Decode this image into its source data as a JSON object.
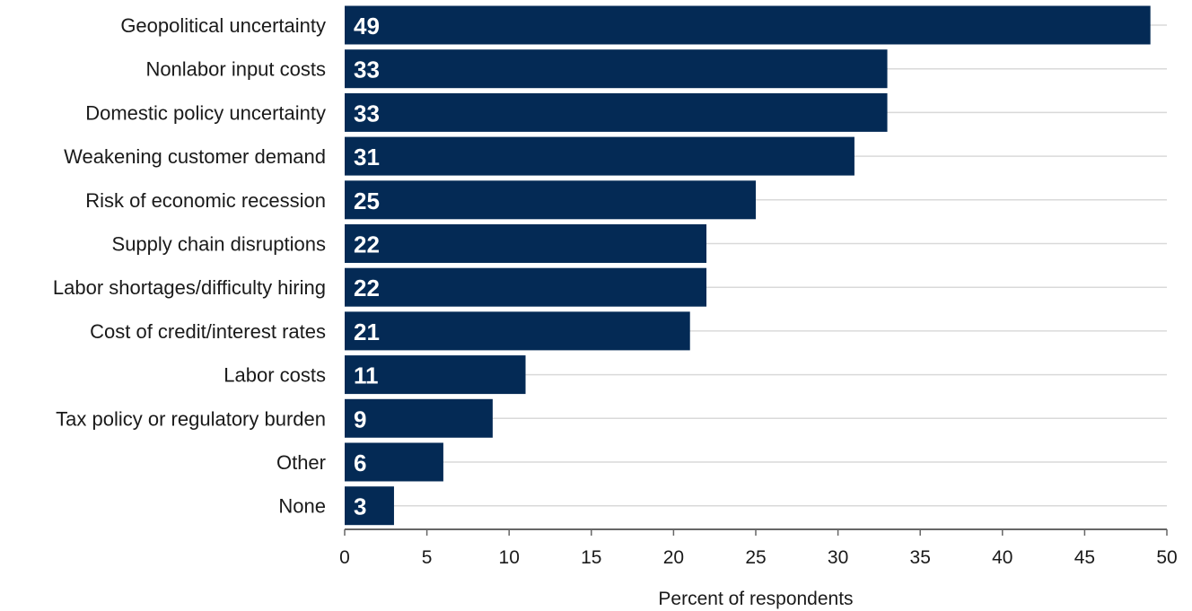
{
  "chart_data": {
    "type": "bar",
    "orientation": "horizontal",
    "categories": [
      "Geopolitical uncertainty",
      "Nonlabor input costs",
      "Domestic policy uncertainty",
      "Weakening customer demand",
      "Risk of economic recession",
      "Supply chain disruptions",
      "Labor shortages/difficulty hiring",
      "Cost of credit/interest rates",
      "Labor costs",
      "Tax policy or regulatory burden",
      "Other",
      "None"
    ],
    "values": [
      49,
      33,
      33,
      31,
      25,
      22,
      22,
      21,
      11,
      9,
      6,
      3
    ],
    "data_labels": [
      "49",
      "33",
      "33",
      "31",
      "25",
      "22",
      "22",
      "21",
      "11",
      "9",
      "6",
      "3"
    ],
    "xlabel": "Percent of respondents",
    "xlim": [
      0,
      50
    ],
    "x_ticks": [
      0,
      5,
      10,
      15,
      20,
      25,
      30,
      35,
      40,
      45,
      50
    ],
    "x_tick_labels": [
      "0",
      "5",
      "10",
      "15",
      "20",
      "25",
      "30",
      "35",
      "40",
      "45",
      "50"
    ],
    "grid": "horizontal",
    "legend": "none",
    "bar_color": "#042a55",
    "grid_color": "#d9d9d9",
    "axis_color": "#666666"
  }
}
